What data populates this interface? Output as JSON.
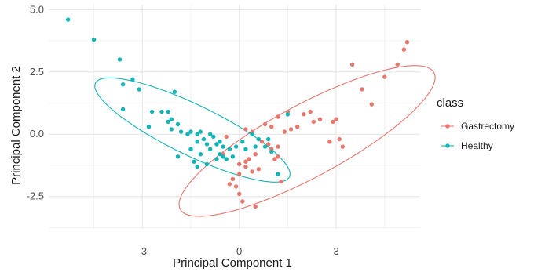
{
  "chart_data": {
    "type": "scatter",
    "xlabel": "Principal Component 1",
    "ylabel": "Principal Component 2",
    "xlim": [
      -5.9,
      5.6
    ],
    "ylim": [
      -3.8,
      5.2
    ],
    "x_ticks": [
      -3,
      0,
      3
    ],
    "x_tick_labels": [
      "-3",
      "0",
      "3"
    ],
    "y_ticks": [
      -2.5,
      0,
      2.5,
      5
    ],
    "y_tick_labels": [
      "-2.5",
      "0.0",
      "2.5",
      "5.0"
    ],
    "grid": true,
    "legend": {
      "title": "class",
      "position": "right",
      "entries": [
        "Gastrectomy",
        "Healthy"
      ]
    },
    "series": [
      {
        "name": "Gastrectomy",
        "color": "#E8776E",
        "points": [
          [
            5.2,
            3.7
          ],
          [
            5.1,
            3.4
          ],
          [
            4.9,
            2.8
          ],
          [
            4.5,
            2.3
          ],
          [
            3.5,
            2.8
          ],
          [
            3.8,
            1.8
          ],
          [
            4.1,
            1.2
          ],
          [
            3.0,
            0.6
          ],
          [
            2.9,
            0.5
          ],
          [
            2.5,
            0.6
          ],
          [
            2.2,
            0.9
          ],
          [
            2.0,
            0.8
          ],
          [
            2.3,
            0.5
          ],
          [
            1.8,
            0.3
          ],
          [
            1.6,
            0.2
          ],
          [
            1.4,
            0.1
          ],
          [
            1.2,
            0.7
          ],
          [
            1.5,
            0.9
          ],
          [
            1.0,
            0.3
          ],
          [
            0.8,
            0.4
          ],
          [
            3.1,
            -0.2
          ],
          [
            3.2,
            -0.5
          ],
          [
            2.8,
            -0.3
          ],
          [
            1.2,
            -0.5
          ],
          [
            1.2,
            -0.9
          ],
          [
            1.1,
            -1.0
          ],
          [
            1.0,
            -0.6
          ],
          [
            0.7,
            -0.3
          ],
          [
            0.5,
            -0.8
          ],
          [
            0.3,
            -1.0
          ],
          [
            0.2,
            -1.3
          ],
          [
            0.4,
            -1.5
          ],
          [
            0.6,
            -1.4
          ],
          [
            0.2,
            -1.1
          ],
          [
            0.0,
            -1.2
          ],
          [
            0.0,
            -1.6
          ],
          [
            -0.2,
            -1.8
          ],
          [
            -0.3,
            -2.0
          ],
          [
            -0.1,
            -2.1
          ],
          [
            0.0,
            -2.4
          ],
          [
            0.1,
            -2.7
          ],
          [
            0.5,
            -2.9
          ],
          [
            1.3,
            -1.9
          ],
          [
            -0.5,
            -0.8
          ],
          [
            -0.4,
            -0.1
          ],
          [
            0.2,
            0.2
          ],
          [
            0.4,
            0.1
          ],
          [
            0.9,
            -0.4
          ]
        ]
      },
      {
        "name": "Healthy",
        "color": "#12B5B5",
        "points": [
          [
            -5.3,
            4.6
          ],
          [
            -4.5,
            3.8
          ],
          [
            -3.7,
            3.0
          ],
          [
            -3.3,
            2.2
          ],
          [
            -3.6,
            2.0
          ],
          [
            -3.1,
            1.8
          ],
          [
            -2.0,
            1.7
          ],
          [
            -3.6,
            1.0
          ],
          [
            -2.4,
            0.9
          ],
          [
            -2.2,
            0.9
          ],
          [
            -2.7,
            0.9
          ],
          [
            -2.1,
            0.6
          ],
          [
            -2.2,
            0.5
          ],
          [
            -1.9,
            0.4
          ],
          [
            -2.8,
            0.3
          ],
          [
            -2.1,
            0.2
          ],
          [
            -1.8,
            0.1
          ],
          [
            -1.6,
            0.0
          ],
          [
            -1.5,
            0.1
          ],
          [
            -1.3,
            0.0
          ],
          [
            -1.2,
            0.1
          ],
          [
            -0.9,
            0.0
          ],
          [
            -0.8,
            -0.1
          ],
          [
            -1.1,
            -0.2
          ],
          [
            -1.3,
            -0.3
          ],
          [
            -1.0,
            -0.4
          ],
          [
            -0.7,
            -0.4
          ],
          [
            -0.9,
            -0.6
          ],
          [
            -1.5,
            -0.6
          ],
          [
            -1.2,
            -0.8
          ],
          [
            -0.6,
            -0.8
          ],
          [
            -0.5,
            -0.9
          ],
          [
            -0.3,
            -0.6
          ],
          [
            -0.2,
            -0.9
          ],
          [
            -0.4,
            -1.0
          ],
          [
            -1.0,
            -1.2
          ],
          [
            -1.4,
            -1.1
          ],
          [
            -1.9,
            -0.9
          ],
          [
            -0.1,
            -0.5
          ],
          [
            0.1,
            -0.3
          ],
          [
            0.2,
            -0.6
          ],
          [
            0.4,
            0.0
          ],
          [
            0.6,
            -0.2
          ],
          [
            0.8,
            -0.5
          ],
          [
            0.9,
            -0.2
          ],
          [
            0.5,
            -0.5
          ],
          [
            1.0,
            -0.7
          ],
          [
            1.5,
            0.8
          ],
          [
            1.2,
            -1.6
          ],
          [
            -0.6,
            -0.3
          ],
          [
            -0.5,
            -0.5
          ],
          [
            -0.7,
            -1.0
          ],
          [
            -1.3,
            -1.3
          ]
        ]
      }
    ],
    "ellipses": [
      {
        "series": "Gastrectomy",
        "color": "#E8776E",
        "center": [
          2.1,
          -0.27
        ],
        "semi_axes": [
          4.8,
          1.35
        ],
        "angle_deg": 36
      },
      {
        "series": "Healthy",
        "color": "#12B5B5",
        "center": [
          -1.45,
          0.17
        ],
        "semi_axes": [
          3.55,
          0.95
        ],
        "angle_deg": -33
      }
    ]
  }
}
